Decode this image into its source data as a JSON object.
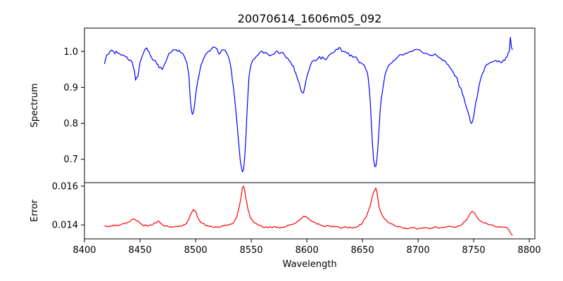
{
  "chart_data": [
    {
      "panel": "top",
      "type": "line",
      "title": "20070614_1606m05_092",
      "xlabel": "",
      "ylabel": "Spectrum",
      "xlim": [
        8400,
        8805
      ],
      "ylim": [
        0.635,
        1.065
      ],
      "yticks": [
        "0.7",
        "0.8",
        "0.9",
        "1.0"
      ],
      "grid": false,
      "series": [
        {
          "color": "#0000ff",
          "x": [
            8418,
            8420,
            8423,
            8426,
            8430,
            8434,
            8438,
            8440,
            8443,
            8445,
            8446,
            8448,
            8450,
            8453,
            8456,
            8458,
            8460,
            8463,
            8465,
            8467,
            8470,
            8473,
            8476,
            8480,
            8484,
            8488,
            8490,
            8492,
            8494,
            8495,
            8496,
            8497,
            8498,
            8499,
            8500,
            8502,
            8504,
            8506,
            8508,
            8510,
            8514,
            8518,
            8520,
            8522,
            8525,
            8528,
            8530,
            8532,
            8534,
            8536,
            8538,
            8540,
            8541,
            8542,
            8543,
            8544,
            8545,
            8546,
            8547,
            8548,
            8550,
            8553,
            8556,
            8560,
            8564,
            8568,
            8572,
            8576,
            8580,
            8584,
            8588,
            8590,
            8592,
            8594,
            8596,
            8597,
            8598,
            8600,
            8603,
            8606,
            8610,
            8614,
            8618,
            8620,
            8622,
            8625,
            8628,
            8630,
            8633,
            8636,
            8640,
            8643,
            8646,
            8650,
            8653,
            8655,
            8656,
            8657,
            8658,
            8659,
            8660,
            8661,
            8662,
            8663,
            8664,
            8665,
            8666,
            8667,
            8668,
            8669,
            8670,
            8672,
            8675,
            8678,
            8682,
            8686,
            8690,
            8694,
            8697,
            8700,
            8703,
            8706,
            8710,
            8714,
            8718,
            8722,
            8726,
            8730,
            8732,
            8734,
            8736,
            8738,
            8740,
            8742,
            8744,
            8746,
            8747,
            8748,
            8749,
            8750,
            8751,
            8752,
            8754,
            8756,
            8758,
            8760,
            8763,
            8766,
            8770,
            8774,
            8778,
            8780,
            8782,
            8783,
            8784,
            8785
          ],
          "y": [
            0.965,
            0.99,
            1.0,
            1.0,
            0.995,
            0.99,
            0.985,
            0.975,
            0.97,
            0.945,
            0.92,
            0.93,
            0.97,
            0.995,
            1.01,
            1.0,
            0.985,
            0.975,
            0.965,
            0.955,
            0.95,
            0.97,
            0.995,
            1.005,
            1.0,
            0.995,
            0.985,
            0.97,
            0.93,
            0.875,
            0.84,
            0.825,
            0.83,
            0.85,
            0.88,
            0.92,
            0.95,
            0.97,
            0.985,
            0.995,
            1.005,
            1.01,
            1.0,
            0.995,
            1.005,
            0.995,
            0.98,
            0.95,
            0.9,
            0.84,
            0.77,
            0.7,
            0.68,
            0.665,
            0.67,
            0.7,
            0.75,
            0.82,
            0.88,
            0.93,
            0.965,
            0.98,
            0.99,
            1.0,
            0.995,
            0.99,
            1.0,
            0.995,
            0.99,
            0.975,
            0.96,
            0.94,
            0.92,
            0.9,
            0.885,
            0.885,
            0.9,
            0.93,
            0.96,
            0.975,
            0.98,
            0.985,
            0.98,
            0.99,
            0.995,
            1.0,
            1.005,
            1.01,
            1.0,
            0.995,
            0.99,
            0.985,
            0.975,
            0.965,
            0.95,
            0.93,
            0.9,
            0.86,
            0.8,
            0.74,
            0.7,
            0.68,
            0.68,
            0.7,
            0.74,
            0.79,
            0.84,
            0.87,
            0.89,
            0.91,
            0.93,
            0.95,
            0.965,
            0.975,
            0.985,
            0.99,
            0.995,
            1.0,
            1.005,
            1.005,
            1.0,
            0.995,
            0.99,
            0.99,
            0.985,
            0.975,
            0.965,
            0.95,
            0.94,
            0.93,
            0.915,
            0.9,
            0.88,
            0.86,
            0.84,
            0.82,
            0.805,
            0.8,
            0.805,
            0.82,
            0.84,
            0.86,
            0.89,
            0.92,
            0.94,
            0.955,
            0.965,
            0.97,
            0.975,
            0.97,
            0.975,
            0.985,
            1.0,
            1.04,
            1.01,
            1.005
          ]
        }
      ]
    },
    {
      "panel": "bottom",
      "type": "line",
      "title": "",
      "xlabel": "Wavelength",
      "ylabel": "Error",
      "xlim": [
        8400,
        8805
      ],
      "ylim": [
        0.01328,
        0.01618
      ],
      "yticks": [
        "0.014",
        "0.016"
      ],
      "xticks": [
        "8400",
        "8450",
        "8500",
        "8550",
        "8600",
        "8650",
        "8700",
        "8750",
        "8800"
      ],
      "grid": false,
      "series": [
        {
          "color": "#ff0000",
          "x": [
            8418,
            8422,
            8426,
            8430,
            8434,
            8438,
            8442,
            8445,
            8448,
            8452,
            8456,
            8460,
            8464,
            8466,
            8468,
            8472,
            8476,
            8480,
            8484,
            8488,
            8492,
            8494,
            8496,
            8498,
            8500,
            8502,
            8505,
            8510,
            8515,
            8520,
            8525,
            8530,
            8534,
            8537,
            8539,
            8541,
            8542,
            8543,
            8544,
            8545,
            8547,
            8549,
            8552,
            8556,
            8560,
            8565,
            8570,
            8575,
            8580,
            8585,
            8590,
            8594,
            8597,
            8600,
            8604,
            8608,
            8612,
            8616,
            8620,
            8625,
            8630,
            8635,
            8640,
            8645,
            8650,
            8654,
            8657,
            8659,
            8661,
            8662,
            8663,
            8664,
            8665,
            8667,
            8670,
            8674,
            8678,
            8682,
            8686,
            8690,
            8695,
            8700,
            8705,
            8710,
            8715,
            8720,
            8725,
            8730,
            8735,
            8740,
            8744,
            8747,
            8749,
            8751,
            8753,
            8756,
            8760,
            8765,
            8770,
            8775,
            8780,
            8783,
            8785
          ],
          "y": [
            0.01395,
            0.0139,
            0.014,
            0.01395,
            0.01405,
            0.0141,
            0.01425,
            0.0143,
            0.0142,
            0.014,
            0.01395,
            0.014,
            0.0141,
            0.0142,
            0.0141,
            0.01395,
            0.0139,
            0.0139,
            0.0139,
            0.01395,
            0.0141,
            0.0143,
            0.0146,
            0.0148,
            0.0147,
            0.01435,
            0.0141,
            0.01395,
            0.0139,
            0.0139,
            0.01395,
            0.014,
            0.0141,
            0.0144,
            0.0149,
            0.0155,
            0.0159,
            0.016,
            0.0158,
            0.0154,
            0.0148,
            0.0144,
            0.01415,
            0.014,
            0.0139,
            0.01385,
            0.0139,
            0.01385,
            0.0139,
            0.014,
            0.0141,
            0.0143,
            0.01445,
            0.0144,
            0.0142,
            0.0141,
            0.014,
            0.0139,
            0.01395,
            0.0139,
            0.01385,
            0.0139,
            0.01385,
            0.0139,
            0.0141,
            0.0145,
            0.015,
            0.0155,
            0.0158,
            0.0159,
            0.0157,
            0.0153,
            0.0149,
            0.0146,
            0.0143,
            0.0141,
            0.014,
            0.0139,
            0.01385,
            0.0138,
            0.01385,
            0.0138,
            0.01385,
            0.0138,
            0.0139,
            0.01385,
            0.0139,
            0.0139,
            0.0139,
            0.01405,
            0.0143,
            0.0146,
            0.0147,
            0.0146,
            0.0144,
            0.0142,
            0.0141,
            0.014,
            0.0139,
            0.0139,
            0.01385,
            0.0136,
            0.01345
          ]
        }
      ]
    }
  ]
}
